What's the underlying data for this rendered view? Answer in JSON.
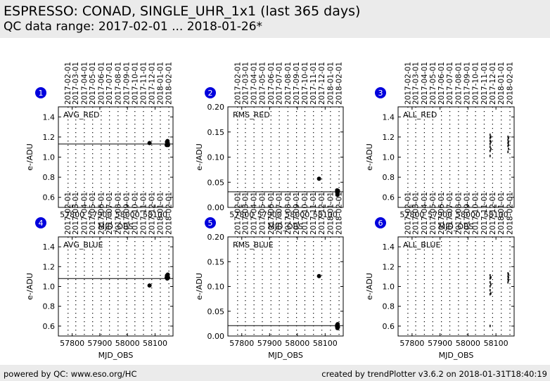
{
  "header": {
    "title": "ESPRESSO: CONAD, SINGLE_UHR_1x1 (last 365 days)",
    "subtitle": "QC data range: 2017-02-01 ... 2018-01-26*"
  },
  "footer": {
    "left": "powered by QC: www.eso.org/HC",
    "right": "created by trendPlotter v3.6.2 on 2018-01-31T18:40:19"
  },
  "colors": {
    "panel_marker": "#0000dd",
    "background": "#ebebeb",
    "data": "#000000"
  },
  "chart_data": [
    {
      "type": "scatter",
      "panel": "1",
      "label": "AVG_RED",
      "xlabel": "MJD_OBS",
      "ylabel": "e-/ADU",
      "xlim": [
        57750,
        58165
      ],
      "ylim": [
        0.5,
        1.5
      ],
      "xticks": [
        57800,
        57900,
        58000,
        58100
      ],
      "yticks": [
        0.6,
        0.8,
        1.0,
        1.2,
        1.4
      ],
      "ytick_labels": [
        "0.6",
        "0.8",
        "1.0",
        "1.2",
        "1.4"
      ],
      "date_ticks": [
        "2017-02-01",
        "2017-03-01",
        "2017-04-01",
        "2017-05-01",
        "2017-06-01",
        "2017-07-01",
        "2017-08-01",
        "2017-09-01",
        "2017-10-01",
        "2017-11-01",
        "2017-12-01",
        "2018-01-01",
        "2018-02-01"
      ],
      "reference_line": 1.13,
      "points": [
        [
          58080,
          1.14
        ],
        [
          58142,
          1.12
        ],
        [
          58143,
          1.15
        ],
        [
          58144,
          1.13
        ],
        [
          58145,
          1.16
        ],
        [
          58146,
          1.14
        ],
        [
          58147,
          1.12
        ]
      ]
    },
    {
      "type": "scatter",
      "panel": "2",
      "label": "RMS_RED",
      "xlabel": "MJD_OBS",
      "ylabel": "e-/ADU",
      "xlim": [
        57750,
        58165
      ],
      "ylim": [
        0.0,
        0.2
      ],
      "xticks": [
        57800,
        57900,
        58000,
        58100
      ],
      "yticks": [
        0.0,
        0.05,
        0.1,
        0.15,
        0.2
      ],
      "ytick_labels": [
        "0.00",
        "0.05",
        "0.10",
        "0.15",
        "0.20"
      ],
      "date_ticks": [
        "2017-02-01",
        "2017-03-01",
        "2017-04-01",
        "2017-05-01",
        "2017-06-01",
        "2017-07-01",
        "2017-08-01",
        "2017-09-01",
        "2017-10-01",
        "2017-11-01",
        "2017-12-01",
        "2018-01-01",
        "2018-02-01"
      ],
      "reference_line": 0.031,
      "points": [
        [
          58078,
          0.057
        ],
        [
          58143,
          0.034
        ],
        [
          58143,
          0.031
        ],
        [
          58144,
          0.028
        ],
        [
          58144,
          0.025
        ],
        [
          58145,
          0.03
        ],
        [
          58146,
          0.033
        ]
      ]
    },
    {
      "type": "scatter",
      "panel": "3",
      "label": "ALL_RED",
      "xlabel": "MJD_OBS",
      "ylabel": "e-/ADU",
      "xlim": [
        57750,
        58165
      ],
      "ylim": [
        0.5,
        1.5
      ],
      "xticks": [
        57800,
        57900,
        58000,
        58100
      ],
      "yticks": [
        0.6,
        0.8,
        1.0,
        1.2,
        1.4
      ],
      "ytick_labels": [
        "0.6",
        "0.8",
        "1.0",
        "1.2",
        "1.4"
      ],
      "date_ticks": [
        "2017-02-01",
        "2017-03-01",
        "2017-04-01",
        "2017-05-01",
        "2017-06-01",
        "2017-07-01",
        "2017-08-01",
        "2017-09-01",
        "2017-10-01",
        "2017-11-01",
        "2017-12-01",
        "2018-01-01",
        "2018-02-01"
      ],
      "reference_line": null,
      "points": [
        [
          58079,
          1.22
        ],
        [
          58079,
          1.19
        ],
        [
          58079,
          1.16
        ],
        [
          58079,
          1.13
        ],
        [
          58079,
          1.1
        ],
        [
          58079,
          1.06
        ],
        [
          58079,
          1.01
        ],
        [
          58082,
          1.2
        ],
        [
          58082,
          1.15
        ],
        [
          58082,
          1.08
        ],
        [
          58143,
          1.2
        ],
        [
          58143,
          1.17
        ],
        [
          58143,
          1.14
        ],
        [
          58143,
          1.11
        ],
        [
          58143,
          1.05
        ],
        [
          58145,
          1.19
        ],
        [
          58145,
          1.15
        ],
        [
          58145,
          1.12
        ],
        [
          58145,
          1.08
        ]
      ]
    },
    {
      "type": "scatter",
      "panel": "4",
      "label": "AVG_BLUE",
      "xlabel": "MJD_OBS",
      "ylabel": "e-/ADU",
      "xlim": [
        57750,
        58165
      ],
      "ylim": [
        0.5,
        1.5
      ],
      "xticks": [
        57800,
        57900,
        58000,
        58100
      ],
      "yticks": [
        0.6,
        0.8,
        1.0,
        1.2,
        1.4
      ],
      "ytick_labels": [
        "0.6",
        "0.8",
        "1.0",
        "1.2",
        "1.4"
      ],
      "date_ticks": [
        "2017-02-01",
        "2017-03-01",
        "2017-04-01",
        "2017-05-01",
        "2017-06-01",
        "2017-07-01",
        "2017-08-01",
        "2017-09-01",
        "2017-10-01",
        "2017-11-01",
        "2017-12-01",
        "2018-01-01",
        "2018-02-01"
      ],
      "reference_line": 1.08,
      "points": [
        [
          58080,
          1.01
        ],
        [
          58142,
          1.09
        ],
        [
          58143,
          1.11
        ],
        [
          58144,
          1.08
        ],
        [
          58145,
          1.1
        ],
        [
          58146,
          1.12
        ],
        [
          58147,
          1.09
        ]
      ]
    },
    {
      "type": "scatter",
      "panel": "5",
      "label": "RMS_BLUE",
      "xlabel": "MJD_OBS",
      "ylabel": "e-/ADU",
      "xlim": [
        57750,
        58165
      ],
      "ylim": [
        0.0,
        0.2
      ],
      "xticks": [
        57800,
        57900,
        58000,
        58100
      ],
      "yticks": [
        0.0,
        0.05,
        0.1,
        0.15,
        0.2
      ],
      "ytick_labels": [
        "0.00",
        "0.05",
        "0.10",
        "0.15",
        "0.20"
      ],
      "date_ticks": [
        "2017-02-01",
        "2017-03-01",
        "2017-04-01",
        "2017-05-01",
        "2017-06-01",
        "2017-07-01",
        "2017-08-01",
        "2017-09-01",
        "2017-10-01",
        "2017-11-01",
        "2017-12-01",
        "2018-01-01",
        "2018-02-01"
      ],
      "reference_line": 0.021,
      "points": [
        [
          58078,
          0.121
        ],
        [
          58143,
          0.022
        ],
        [
          58143,
          0.019
        ],
        [
          58144,
          0.016
        ],
        [
          58145,
          0.024
        ],
        [
          58146,
          0.018
        ]
      ]
    },
    {
      "type": "scatter",
      "panel": "6",
      "label": "ALL_BLUE",
      "xlabel": "MJD_OBS",
      "ylabel": "e-/ADU",
      "xlim": [
        57750,
        58165
      ],
      "ylim": [
        0.5,
        1.5
      ],
      "xticks": [
        57800,
        57900,
        58000,
        58100
      ],
      "yticks": [
        0.6,
        0.8,
        1.0,
        1.2,
        1.4
      ],
      "ytick_labels": [
        "0.6",
        "0.8",
        "1.0",
        "1.2",
        "1.4"
      ],
      "date_ticks": [
        "2017-02-01",
        "2017-03-01",
        "2017-04-01",
        "2017-05-01",
        "2017-06-01",
        "2017-07-01",
        "2017-08-01",
        "2017-09-01",
        "2017-10-01",
        "2017-11-01",
        "2017-12-01",
        "2018-01-01",
        "2018-02-01"
      ],
      "reference_line": null,
      "points": [
        [
          58079,
          1.11
        ],
        [
          58079,
          1.08
        ],
        [
          58079,
          1.04
        ],
        [
          58079,
          1.0
        ],
        [
          58079,
          0.96
        ],
        [
          58079,
          0.92
        ],
        [
          58079,
          0.6
        ],
        [
          58082,
          1.09
        ],
        [
          58082,
          1.02
        ],
        [
          58082,
          0.93
        ],
        [
          58143,
          1.13
        ],
        [
          58143,
          1.1
        ],
        [
          58143,
          1.07
        ],
        [
          58143,
          1.04
        ],
        [
          58145,
          1.12
        ],
        [
          58145,
          1.09
        ],
        [
          58145,
          1.06
        ]
      ]
    }
  ]
}
